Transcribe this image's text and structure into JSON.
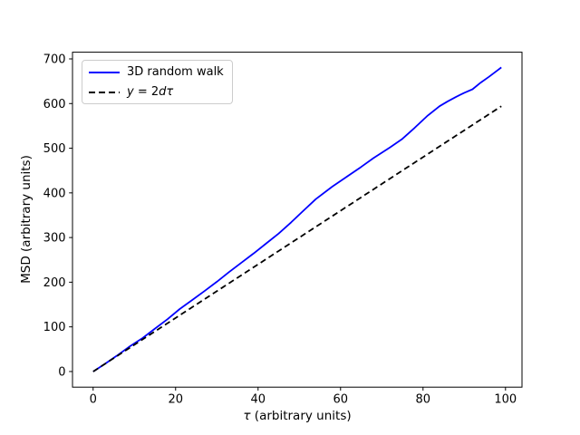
{
  "figure": {
    "background": "#ffffff",
    "frame_color": "#000000"
  },
  "chart_data": {
    "type": "line",
    "title": "",
    "xlabel": "τ (arbitrary units)",
    "ylabel": "MSD (arbitrary units)",
    "xlabel_parts": {
      "tau": "τ",
      "rest": " (arbitrary units)"
    },
    "xlim": [
      -5,
      104
    ],
    "ylim": [
      -35,
      715
    ],
    "xticks": [
      0,
      20,
      40,
      60,
      80,
      100
    ],
    "yticks": [
      0,
      100,
      200,
      300,
      400,
      500,
      600,
      700
    ],
    "grid": false,
    "legend_position": "upper-left",
    "series": [
      {
        "name": "3D random walk",
        "color": "#0000ff",
        "style": "solid",
        "x": [
          0,
          3,
          6,
          9,
          12,
          15,
          18,
          21,
          24,
          27,
          30,
          33,
          36,
          39,
          42,
          45,
          48,
          51,
          54,
          58,
          61,
          65,
          68,
          72,
          75,
          78,
          81,
          84,
          86,
          88,
          90,
          92,
          94,
          96,
          98,
          99
        ],
        "y": [
          0,
          18,
          37,
          57,
          75,
          96,
          117,
          140,
          160,
          180,
          201,
          223,
          244,
          265,
          287,
          309,
          334,
          360,
          386,
          414,
          433,
          458,
          478,
          502,
          521,
          546,
          572,
          594,
          605,
          615,
          624,
          632,
          647,
          660,
          674,
          681
        ]
      },
      {
        "name": "y = 2dτ",
        "color": "#000000",
        "style": "dashed",
        "x": [
          0,
          99
        ],
        "y": [
          0,
          594
        ]
      }
    ]
  },
  "legend": {
    "items": [
      {
        "label": "3D random walk"
      },
      {
        "label_y": "y",
        "label_eq": " = 2",
        "label_dtau": "dτ"
      }
    ]
  }
}
